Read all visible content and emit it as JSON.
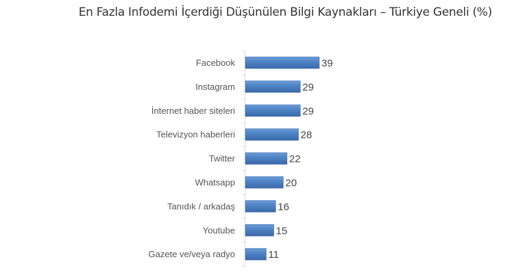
{
  "chart_data": {
    "type": "bar",
    "orientation": "horizontal",
    "title": "En Fazla Infodemi İçerdiği Düşünülen Bilgi Kaynakları – Türkiye Geneli (%)",
    "categories": [
      "Facebook",
      "Instagram",
      "İnternet haber siteleri",
      "Televizyon haberleri",
      "Twitter",
      "Whatsapp",
      "Tanıdık / arkadaş",
      "Youtube",
      "Gazete ve/veya radyo"
    ],
    "values": [
      39,
      29,
      29,
      28,
      22,
      20,
      16,
      15,
      11
    ],
    "xlabel": "",
    "ylabel": "",
    "grid": false,
    "legend": "none",
    "bar_color": "#4a7fc1"
  }
}
